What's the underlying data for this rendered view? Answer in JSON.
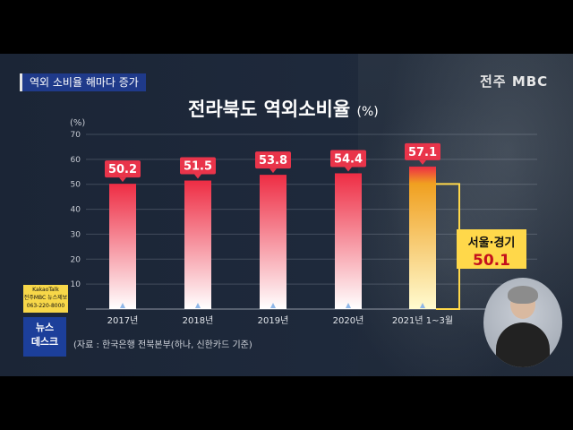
{
  "header": {
    "tag_label": "역외 소비율 해마다 증가",
    "logo_text": "전주 MBC"
  },
  "chart_title": "전라북도 역외소비율",
  "chart_title_unit": "(%)",
  "chart_data": {
    "type": "bar",
    "title": "전라북도 역외소비율",
    "ylabel": "(%)",
    "ylim": [
      0,
      70
    ],
    "yticks": [
      "10",
      "20",
      "30",
      "40",
      "50",
      "60",
      "70"
    ],
    "categories": [
      "2017년",
      "2018년",
      "2019년",
      "2020년",
      "2021년 1~3월"
    ],
    "values": [
      50.2,
      51.5,
      53.8,
      54.4,
      57.1
    ],
    "data_labels": [
      "50.2",
      "51.5",
      "53.8",
      "54.4",
      "57.1"
    ],
    "grid": true,
    "highlight_color": "#e9344a",
    "annotation": {
      "label": "서울·경기",
      "value": 50.1,
      "value_text": "50.1",
      "category_index": 4,
      "color": "#ffd84a"
    }
  },
  "sidebar_badges": {
    "kakao_line1": "KakaoTalk",
    "kakao_line2": "전주MBC 뉴스제보",
    "kakao_phone": "063-220-8000",
    "news_line1": "뉴스",
    "news_line2": "데스크"
  },
  "source_text": "(자료 : 한국은행 전북본부(하나, 신한카드 기준)"
}
